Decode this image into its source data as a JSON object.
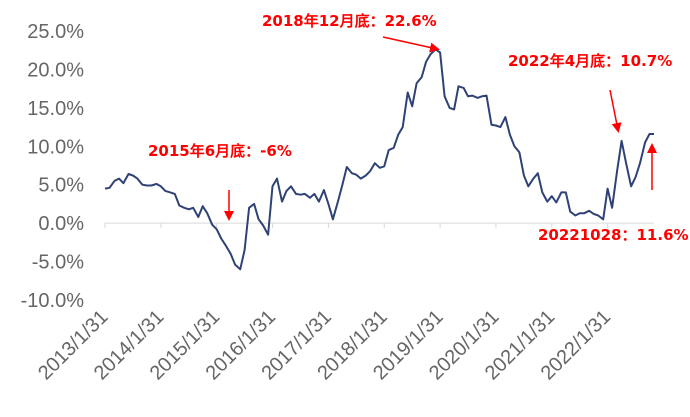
{
  "chart_data": {
    "type": "line",
    "y_ticks": [
      "25.0%",
      "20.0%",
      "15.0%",
      "10.0%",
      "5.0%",
      "0.0%",
      "-5.0%",
      "-10.0%"
    ],
    "ylim": [
      -10,
      25
    ],
    "x_ticks": [
      "2013/1/31",
      "2014/1/31",
      "2015/1/31",
      "2016/1/31",
      "2017/1/31",
      "2018/1/31",
      "2019/1/31",
      "2020/1/31",
      "2021/1/31",
      "2022/1/31"
    ],
    "xlim": [
      2013.0,
      2022.83
    ],
    "grid": false,
    "colors": {
      "line": "#2f4275",
      "annotation": "#ff0000"
    },
    "series": [
      {
        "x": [
          2013.0,
          2013.08,
          2013.17,
          2013.25,
          2013.33,
          2013.42,
          2013.5,
          2013.58,
          2013.67,
          2013.75,
          2013.83,
          2013.92,
          2014.0,
          2014.08,
          2014.17,
          2014.25,
          2014.33,
          2014.42,
          2014.5,
          2014.58,
          2014.67,
          2014.75,
          2014.83,
          2014.92,
          2015.0,
          2015.08,
          2015.17,
          2015.25,
          2015.33,
          2015.42,
          2015.5,
          2015.58,
          2015.67,
          2015.75,
          2015.83,
          2015.92,
          2016.0,
          2016.08,
          2016.17,
          2016.25,
          2016.33,
          2016.42,
          2016.5,
          2016.58,
          2016.67,
          2016.75,
          2016.83,
          2016.92,
          2017.0,
          2017.08,
          2017.17,
          2017.25,
          2017.33,
          2017.42,
          2017.5,
          2017.58,
          2017.67,
          2017.75,
          2017.83,
          2017.92,
          2018.0,
          2018.08,
          2018.17,
          2018.25,
          2018.33,
          2018.42,
          2018.5,
          2018.58,
          2018.67,
          2018.75,
          2018.83,
          2018.92,
          2019.0,
          2019.08,
          2019.17,
          2019.25,
          2019.33,
          2019.42,
          2019.5,
          2019.58,
          2019.67,
          2019.75,
          2019.83,
          2019.92,
          2020.0,
          2020.08,
          2020.17,
          2020.25,
          2020.33,
          2020.42,
          2020.5,
          2020.58,
          2020.67,
          2020.75,
          2020.83,
          2020.92,
          2021.0,
          2021.08,
          2021.17,
          2021.25,
          2021.33,
          2021.42,
          2021.5,
          2021.58,
          2021.67,
          2021.75,
          2021.83,
          2021.92,
          2022.0,
          2022.08,
          2022.17,
          2022.25,
          2022.33,
          2022.42,
          2022.5,
          2022.58,
          2022.67,
          2022.75,
          2022.83
        ],
        "values": [
          4.5,
          4.6,
          5.5,
          5.8,
          5.2,
          6.4,
          6.2,
          5.8,
          5.0,
          4.9,
          4.9,
          5.1,
          4.8,
          4.2,
          4.0,
          3.8,
          2.3,
          2.0,
          1.8,
          2.0,
          0.8,
          2.2,
          1.3,
          -0.2,
          -0.8,
          -2.0,
          -3.0,
          -4.0,
          -5.4,
          -6.0,
          -3.5,
          2.0,
          2.5,
          0.5,
          -0.3,
          -1.5,
          4.8,
          5.8,
          2.8,
          4.2,
          4.8,
          3.8,
          3.7,
          3.8,
          3.3,
          3.8,
          2.8,
          4.3,
          2.5,
          0.5,
          2.8,
          5.0,
          7.3,
          6.5,
          6.3,
          5.8,
          6.2,
          6.8,
          7.8,
          7.2,
          7.4,
          9.5,
          9.8,
          11.5,
          12.5,
          17.0,
          15.2,
          18.2,
          19.0,
          21.0,
          22.0,
          22.6,
          22.2,
          16.5,
          15.0,
          14.8,
          17.8,
          17.6,
          16.5,
          16.6,
          16.3,
          16.5,
          16.6,
          12.8,
          12.7,
          12.5,
          13.8,
          11.5,
          10.0,
          9.2,
          6.2,
          4.8,
          5.8,
          6.5,
          4.0,
          2.8,
          3.5,
          2.7,
          4.0,
          4.0,
          1.5,
          1.0,
          1.3,
          1.3,
          1.6,
          1.2,
          1.0,
          0.5,
          4.5,
          2.0,
          6.8,
          10.7,
          7.8,
          4.8,
          6.0,
          7.8,
          10.5,
          11.6,
          11.6
        ]
      }
    ],
    "annotations": [
      {
        "label": "2015年6月底：-6%"
      },
      {
        "label": "2018年12月底：22.6%"
      },
      {
        "label": "2022年4月底：10.7%"
      },
      {
        "label": "20221028：11.6%"
      }
    ]
  }
}
